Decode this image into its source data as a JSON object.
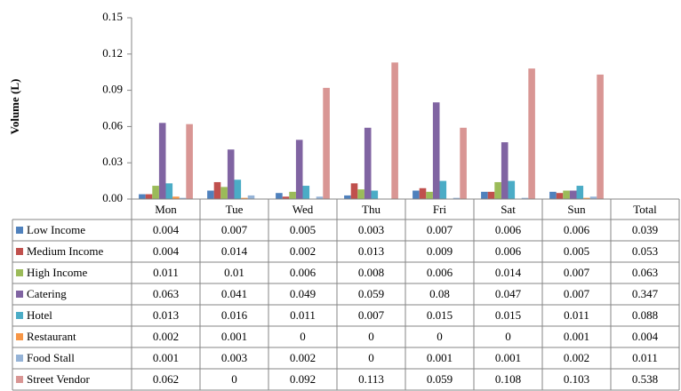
{
  "chart_data": {
    "type": "bar",
    "y_label": "Volume (L)",
    "categories": [
      "Mon",
      "Tue",
      "Wed",
      "Thu",
      "Fri",
      "Sat",
      "Sun"
    ],
    "total_header": "Total",
    "ylim": [
      0,
      0.15
    ],
    "yticks": [
      {
        "value": 0,
        "label": "0.00"
      },
      0.03,
      0.06,
      0.09,
      0.12,
      0.15
    ],
    "grid": false,
    "series": [
      {
        "name": "Low Income",
        "color": "#4f81bd",
        "values": [
          0.004,
          0.007,
          0.005,
          0.003,
          0.007,
          0.006,
          0.006
        ],
        "total": 0.039
      },
      {
        "name": "Medium Income",
        "color": "#c0504d",
        "values": [
          0.004,
          0.014,
          0.002,
          0.013,
          0.009,
          0.006,
          0.005
        ],
        "total": 0.053
      },
      {
        "name": "High Income",
        "color": "#9bbb59",
        "values": [
          0.011,
          0.01,
          0.006,
          0.008,
          0.006,
          0.014,
          0.007
        ],
        "total": 0.063
      },
      {
        "name": "Catering",
        "color": "#8064a2",
        "values": [
          0.063,
          0.041,
          0.049,
          0.059,
          0.08,
          0.047,
          0.007
        ],
        "total": 0.347
      },
      {
        "name": "Hotel",
        "color": "#4bacc6",
        "values": [
          0.013,
          0.016,
          0.011,
          0.007,
          0.015,
          0.015,
          0.011
        ],
        "total": 0.088
      },
      {
        "name": "Restaurant",
        "color": "#f79646",
        "values": [
          0.002,
          0.001,
          0,
          0,
          0,
          0,
          0.001
        ],
        "total": 0.004
      },
      {
        "name": "Food Stall",
        "color": "#95b3d7",
        "values": [
          0.001,
          0.003,
          0.002,
          0,
          0.001,
          0.001,
          0.002
        ],
        "total": 0.011
      },
      {
        "name": "Street Vendor",
        "color": "#d99694",
        "values": [
          0.062,
          0,
          0.092,
          0.113,
          0.059,
          0.108,
          0.103
        ],
        "total": 0.538
      }
    ]
  }
}
